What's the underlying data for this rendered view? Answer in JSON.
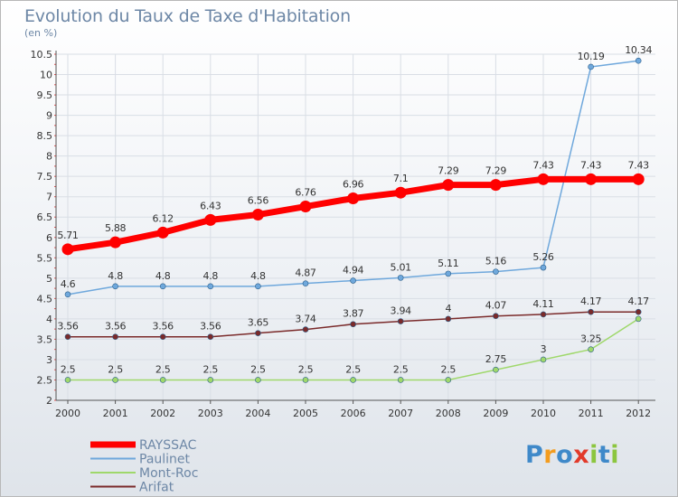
{
  "chart_data": {
    "type": "line",
    "title": "Evolution du Taux de Taxe d'Habitation",
    "subtitle": "(en %)",
    "xlabel": "",
    "ylabel": "",
    "x": [
      "2000",
      "2001",
      "2002",
      "2003",
      "2004",
      "2005",
      "2006",
      "2007",
      "2008",
      "2009",
      "2010",
      "2011",
      "2012"
    ],
    "ylim": [
      2,
      10.5
    ],
    "yticks": [
      "2",
      "2.5",
      "3",
      "3.5",
      "4",
      "4.5",
      "5",
      "5.5",
      "6",
      "6.5",
      "7",
      "7.5",
      "8",
      "8.5",
      "9",
      "9.5",
      "10",
      "10.5"
    ],
    "grid": true,
    "legend_position": "bottom-left",
    "series": [
      {
        "name": "RAYSSAC",
        "color": "#ff0000",
        "values": [
          5.71,
          5.88,
          6.12,
          6.43,
          6.56,
          6.76,
          6.96,
          7.1,
          7.29,
          7.29,
          7.43,
          7.43,
          7.43
        ],
        "labels": [
          "5.71",
          "5.88",
          "6.12",
          "6.43",
          "6.56",
          "6.76",
          "6.96",
          "7.1",
          "7.29",
          "7.29",
          "7.43",
          "7.43",
          "7.43"
        ]
      },
      {
        "name": "Paulinet",
        "color": "#6fa8dc",
        "values": [
          4.6,
          4.8,
          4.8,
          4.8,
          4.8,
          4.87,
          4.94,
          5.01,
          5.11,
          5.16,
          5.26,
          10.19,
          10.34
        ],
        "labels": [
          "4.6",
          "4.8",
          "4.8",
          "4.8",
          "4.8",
          "4.87",
          "4.94",
          "5.01",
          "5.11",
          "5.16",
          "5.26",
          "10.19",
          "10.34"
        ]
      },
      {
        "name": "Mont-Roc",
        "color": "#9fd86b",
        "values": [
          2.5,
          2.5,
          2.5,
          2.5,
          2.5,
          2.5,
          2.5,
          2.5,
          2.5,
          2.75,
          3,
          3.25,
          4
        ],
        "labels": [
          "2.5",
          "2.5",
          "2.5",
          "2.5",
          "2.5",
          "2.5",
          "2.5",
          "2.5",
          "2.5",
          "2.75",
          "3",
          "3.25",
          ""
        ]
      },
      {
        "name": "Arifat",
        "color": "#7a2a2a",
        "values": [
          3.56,
          3.56,
          3.56,
          3.56,
          3.65,
          3.74,
          3.87,
          3.94,
          4,
          4.07,
          4.11,
          4.17,
          4.17
        ],
        "labels": [
          "3.56",
          "3.56",
          "3.56",
          "3.56",
          "3.65",
          "3.74",
          "3.87",
          "3.94",
          "4",
          "4.07",
          "4.11",
          "4.17",
          "4.17"
        ]
      }
    ]
  },
  "logo": {
    "letters": [
      {
        "char": "P",
        "color": "#3f89c9"
      },
      {
        "char": "r",
        "color": "#f39c1e"
      },
      {
        "char": "o",
        "color": "#3f89c9"
      },
      {
        "char": "x",
        "color": "#e23a2a"
      },
      {
        "char": "i",
        "color": "#8cc63f"
      },
      {
        "char": "t",
        "color": "#3f89c9"
      },
      {
        "char": "i",
        "color": "#8cc63f"
      }
    ]
  }
}
